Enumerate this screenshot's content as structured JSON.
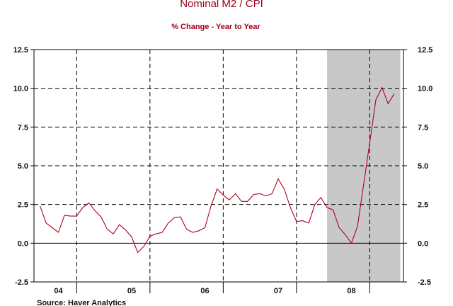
{
  "chart_data": {
    "type": "line",
    "title": "Nominal M2 / CPI",
    "subtitle": "% Change - Year to Year",
    "source": "Source: Haver Analytics",
    "ylim": [
      -2.5,
      12.5
    ],
    "yticks": [
      "12.5",
      "10.0",
      "7.5",
      "5.0",
      "2.5",
      "0.0",
      "-2.5"
    ],
    "ytick_values": [
      12.5,
      10.0,
      7.5,
      5.0,
      2.5,
      0.0,
      -2.5
    ],
    "xlim": [
      2003.917,
      2008.96
    ],
    "x_labels": [
      "04",
      "05",
      "06",
      "07",
      "08"
    ],
    "x_label_positions": [
      2004.25,
      2005.25,
      2006.25,
      2007.25,
      2008.25
    ],
    "year_boundaries": [
      2004.5,
      2005.5,
      2006.5,
      2007.5,
      2008.5
    ],
    "grid": true,
    "recession_shading": [
      {
        "start": 2007.917,
        "end": 2008.917
      }
    ],
    "colors": {
      "line": "#b00020",
      "shading": "#c8c8c8",
      "title": "#a0001e"
    },
    "series": [
      {
        "x": [
          2004.0,
          2004.083,
          2004.167,
          2004.25,
          2004.333,
          2004.417,
          2004.5,
          2004.583,
          2004.667,
          2004.75,
          2004.833,
          2004.917,
          2005.0,
          2005.083,
          2005.167,
          2005.25,
          2005.333,
          2005.417,
          2005.5,
          2005.583,
          2005.667,
          2005.75,
          2005.833,
          2005.917,
          2006.0,
          2006.083,
          2006.167,
          2006.25,
          2006.333,
          2006.417,
          2006.5,
          2006.583,
          2006.667,
          2006.75,
          2006.833,
          2006.917,
          2007.0,
          2007.083,
          2007.167,
          2007.25,
          2007.333,
          2007.417,
          2007.5,
          2007.583,
          2007.667,
          2007.75,
          2007.833,
          2007.917,
          2008.0,
          2008.083,
          2008.167,
          2008.25,
          2008.333,
          2008.417,
          2008.5,
          2008.583,
          2008.667,
          2008.75,
          2008.833
        ],
        "values": [
          2.4,
          1.3,
          1.0,
          0.7,
          1.8,
          1.75,
          1.75,
          2.3,
          2.6,
          2.1,
          1.7,
          0.9,
          0.6,
          1.2,
          0.85,
          0.4,
          -0.6,
          -0.2,
          0.45,
          0.6,
          0.7,
          1.3,
          1.65,
          1.7,
          0.9,
          0.7,
          0.8,
          1.0,
          2.4,
          3.5,
          3.1,
          2.8,
          3.2,
          2.7,
          2.7,
          3.15,
          3.2,
          3.05,
          3.2,
          4.15,
          3.5,
          2.3,
          1.4,
          1.45,
          1.3,
          2.5,
          2.95,
          2.3,
          2.15,
          1.0,
          0.55,
          0.0,
          1.1,
          3.8,
          6.5,
          9.25,
          10.05,
          9.0,
          9.65
        ]
      }
    ]
  }
}
